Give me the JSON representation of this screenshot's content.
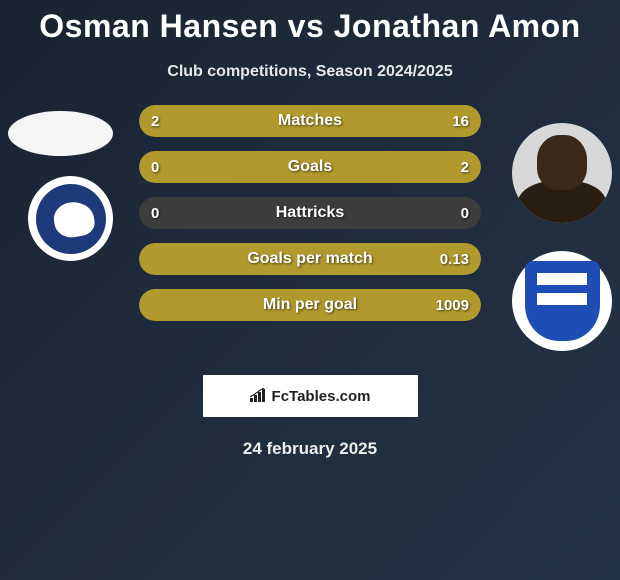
{
  "title": "Osman Hansen vs Jonathan Amon",
  "subtitle": "Club competitions, Season 2024/2025",
  "brand": "FcTables.com",
  "date": "24 february 2025",
  "bar_color": "#b09a2e",
  "bar_bg_color": "#3d3d3d",
  "stats": [
    {
      "label": "Matches",
      "left_val": "2",
      "right_val": "16",
      "left_pct": 11,
      "right_pct": 89
    },
    {
      "label": "Goals",
      "left_val": "0",
      "right_val": "2",
      "left_pct": 0,
      "right_pct": 100
    },
    {
      "label": "Hattricks",
      "left_val": "0",
      "right_val": "0",
      "left_pct": 0,
      "right_pct": 0
    },
    {
      "label": "Goals per match",
      "left_val": "",
      "right_val": "0.13",
      "left_pct": 0,
      "right_pct": 100
    },
    {
      "label": "Min per goal",
      "left_val": "",
      "right_val": "1009",
      "left_pct": 0,
      "right_pct": 100
    }
  ]
}
